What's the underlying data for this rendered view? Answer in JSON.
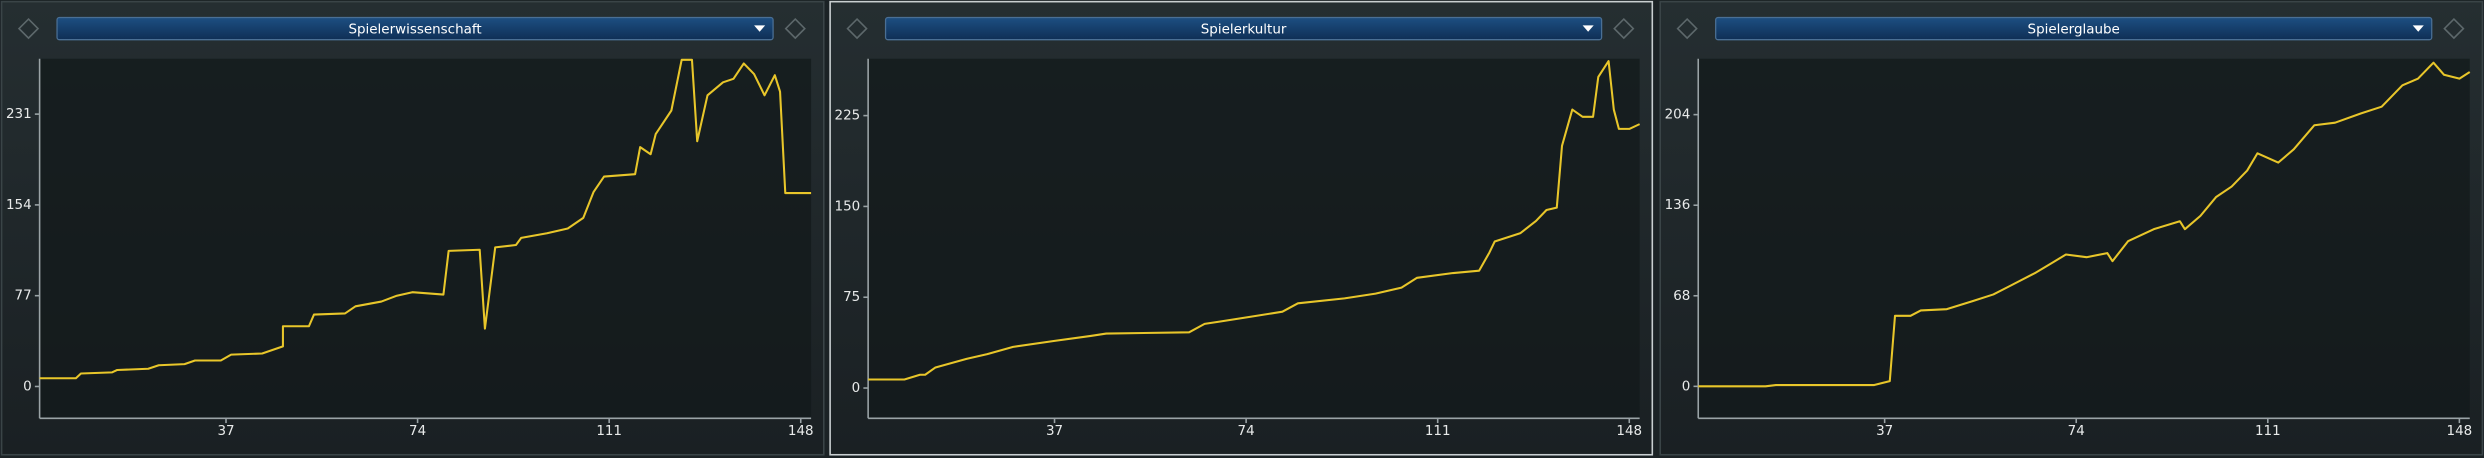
{
  "chart_data": [
    {
      "type": "line",
      "title": "Spielerwissenschaft",
      "color": "#e8c62a",
      "x": [
        1,
        8,
        9,
        15,
        16,
        22,
        24,
        29,
        31,
        36,
        38,
        44,
        48,
        48,
        53,
        54,
        60,
        62,
        67,
        70,
        73,
        79,
        80,
        86,
        87,
        89,
        93,
        94,
        99,
        103,
        106,
        108,
        110,
        116,
        117,
        119,
        120,
        123,
        125,
        127,
        128,
        130,
        133,
        135,
        137,
        139,
        141,
        143,
        144,
        145,
        150
      ],
      "values": [
        7,
        7,
        11,
        12,
        14,
        15,
        18,
        19,
        22,
        22,
        27,
        28,
        34,
        51,
        51,
        61,
        62,
        68,
        72,
        77,
        80,
        78,
        115,
        116,
        49,
        118,
        120,
        126,
        130,
        134,
        143,
        165,
        178,
        180,
        203,
        197,
        214,
        234,
        277,
        277,
        208,
        247,
        258,
        261,
        274,
        265,
        247,
        264,
        250,
        164,
        164
      ],
      "xlim": [
        1,
        150
      ],
      "ylim": [
        -27,
        278
      ],
      "xticks": [
        37,
        74,
        111,
        148
      ],
      "yticks": [
        0,
        77,
        154,
        231
      ]
    },
    {
      "type": "line",
      "title": "Spielerkultur",
      "color": "#e8c62a",
      "x": [
        1,
        8,
        11,
        12,
        14,
        20,
        24,
        29,
        37,
        44,
        47,
        63,
        66,
        69,
        75,
        81,
        84,
        93,
        99,
        104,
        107,
        114,
        119,
        121,
        122,
        127,
        130,
        132,
        134,
        135,
        137,
        139,
        141,
        142,
        144,
        145,
        146,
        148,
        150
      ],
      "values": [
        7,
        7,
        11,
        11,
        17,
        24,
        28,
        34,
        39,
        43,
        45,
        46,
        53,
        55,
        59,
        63,
        70,
        74,
        78,
        83,
        91,
        95,
        97,
        112,
        121,
        128,
        138,
        147,
        149,
        200,
        230,
        224,
        224,
        257,
        270,
        230,
        214,
        214,
        218
      ],
      "xlim": [
        1,
        150
      ],
      "ylim": [
        -25,
        272
      ],
      "xticks": [
        37,
        74,
        111,
        148
      ],
      "yticks": [
        0,
        75,
        150,
        225
      ]
    },
    {
      "type": "line",
      "title": "Spielerglaube",
      "color": "#e8c62a",
      "x": [
        1,
        14,
        16,
        35,
        38,
        39,
        42,
        44,
        49,
        54,
        58,
        61,
        66,
        69,
        72,
        76,
        80,
        81,
        84,
        89,
        94,
        95,
        98,
        101,
        104,
        107,
        109,
        113,
        116,
        120,
        124,
        129,
        133,
        137,
        140,
        143,
        145,
        148,
        150
      ],
      "values": [
        0,
        0,
        1,
        1,
        4,
        53,
        53,
        57,
        58,
        64,
        69,
        75,
        85,
        92,
        99,
        97,
        100,
        94,
        109,
        118,
        124,
        118,
        128,
        142,
        150,
        162,
        175,
        168,
        178,
        196,
        198,
        205,
        210,
        226,
        231,
        243,
        234,
        231,
        236
      ],
      "xlim": [
        1,
        150
      ],
      "ylim": [
        -24,
        246
      ],
      "xticks": [
        37,
        74,
        111,
        148
      ],
      "yticks": [
        0,
        68,
        136,
        204
      ]
    }
  ]
}
